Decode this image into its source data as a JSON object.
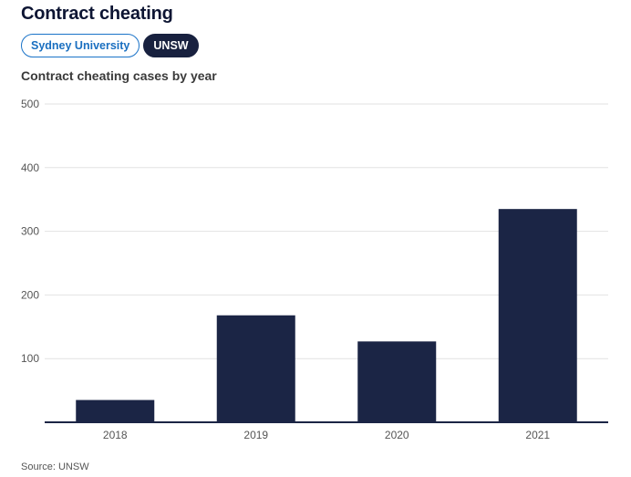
{
  "header": {
    "title": "Contract cheating",
    "tabs": [
      {
        "label": "Sydney University",
        "active": false
      },
      {
        "label": "UNSW",
        "active": true
      }
    ]
  },
  "colors": {
    "bar": "#1b2545",
    "tab_active_bg": "#18213f",
    "tab_inactive_border": "#1a73c8",
    "gridline": "#e2e2e2",
    "axis": "#1b2545"
  },
  "chart_data": {
    "type": "bar",
    "title": "Contract cheating cases by year",
    "categories": [
      "2018",
      "2019",
      "2020",
      "2021"
    ],
    "values": [
      35,
      168,
      127,
      335
    ],
    "ylim": [
      0,
      500
    ],
    "yticks": [
      100,
      200,
      300,
      400,
      500
    ],
    "xlabel": "",
    "ylabel": "",
    "grid": true
  },
  "footer": {
    "source": "Source: UNSW"
  }
}
